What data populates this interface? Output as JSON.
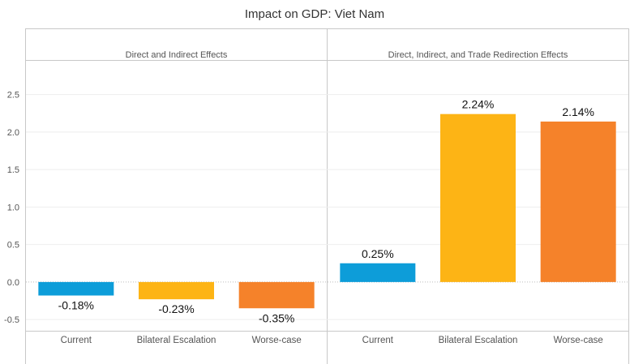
{
  "chart_data": {
    "type": "bar",
    "title": "Impact on GDP: Viet Nam",
    "ylim": [
      -0.65,
      2.95
    ],
    "yticks": [
      "-0.5",
      "0.0",
      "0.5",
      "1.0",
      "1.5",
      "2.0",
      "2.5"
    ],
    "yticks_values": [
      -0.5,
      0.0,
      0.5,
      1.0,
      1.5,
      2.0,
      2.5
    ],
    "grid": true,
    "categories": [
      "Current",
      "Bilateral Escalation",
      "Worse-case"
    ],
    "colors": [
      "#0d9dd9",
      "#fdb415",
      "#f5822a"
    ],
    "panels": [
      {
        "title": "Direct and Indirect Effects",
        "values": [
          -0.18,
          -0.23,
          -0.35
        ],
        "labels": [
          "-0.18%",
          "-0.23%",
          "-0.35%"
        ]
      },
      {
        "title": "Direct, Indirect, and Trade Redirection Effects",
        "values": [
          0.25,
          2.24,
          2.14
        ],
        "labels": [
          "0.25%",
          "2.24%",
          "2.14%"
        ]
      }
    ]
  }
}
